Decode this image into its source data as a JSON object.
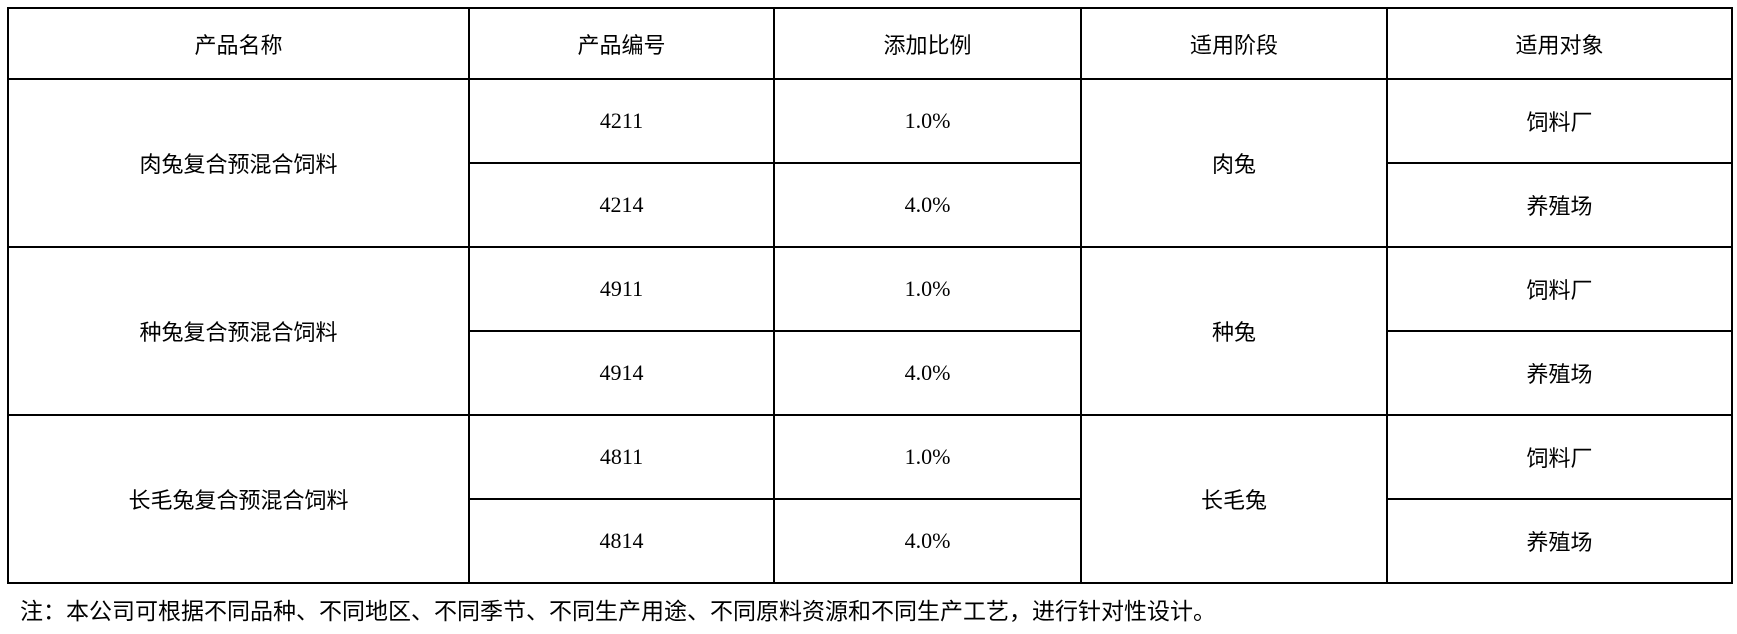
{
  "headers": [
    "产品名称",
    "产品编号",
    "添加比例",
    "适用阶段",
    "适用对象"
  ],
  "groups": [
    {
      "name": "肉兔复合预混合饲料",
      "stage": "肉兔",
      "rows": [
        {
          "code": "4211",
          "ratio": "1.0%",
          "target": "饲料厂"
        },
        {
          "code": "4214",
          "ratio": "4.0%",
          "target": "养殖场"
        }
      ]
    },
    {
      "name": "种兔复合预混合饲料",
      "stage": "种兔",
      "rows": [
        {
          "code": "4911",
          "ratio": "1.0%",
          "target": "饲料厂"
        },
        {
          "code": "4914",
          "ratio": "4.0%",
          "target": "养殖场"
        }
      ]
    },
    {
      "name": "长毛兔复合预混合饲料",
      "stage": "长毛兔",
      "rows": [
        {
          "code": "4811",
          "ratio": "1.0%",
          "target": "饲料厂"
        },
        {
          "code": "4814",
          "ratio": "4.0%",
          "target": "养殖场"
        }
      ]
    }
  ],
  "note": "注：本公司可根据不同品种、不同地区、不同季节、不同生产用途、不同原料资源和不同生产工艺，进行针对性设计。"
}
